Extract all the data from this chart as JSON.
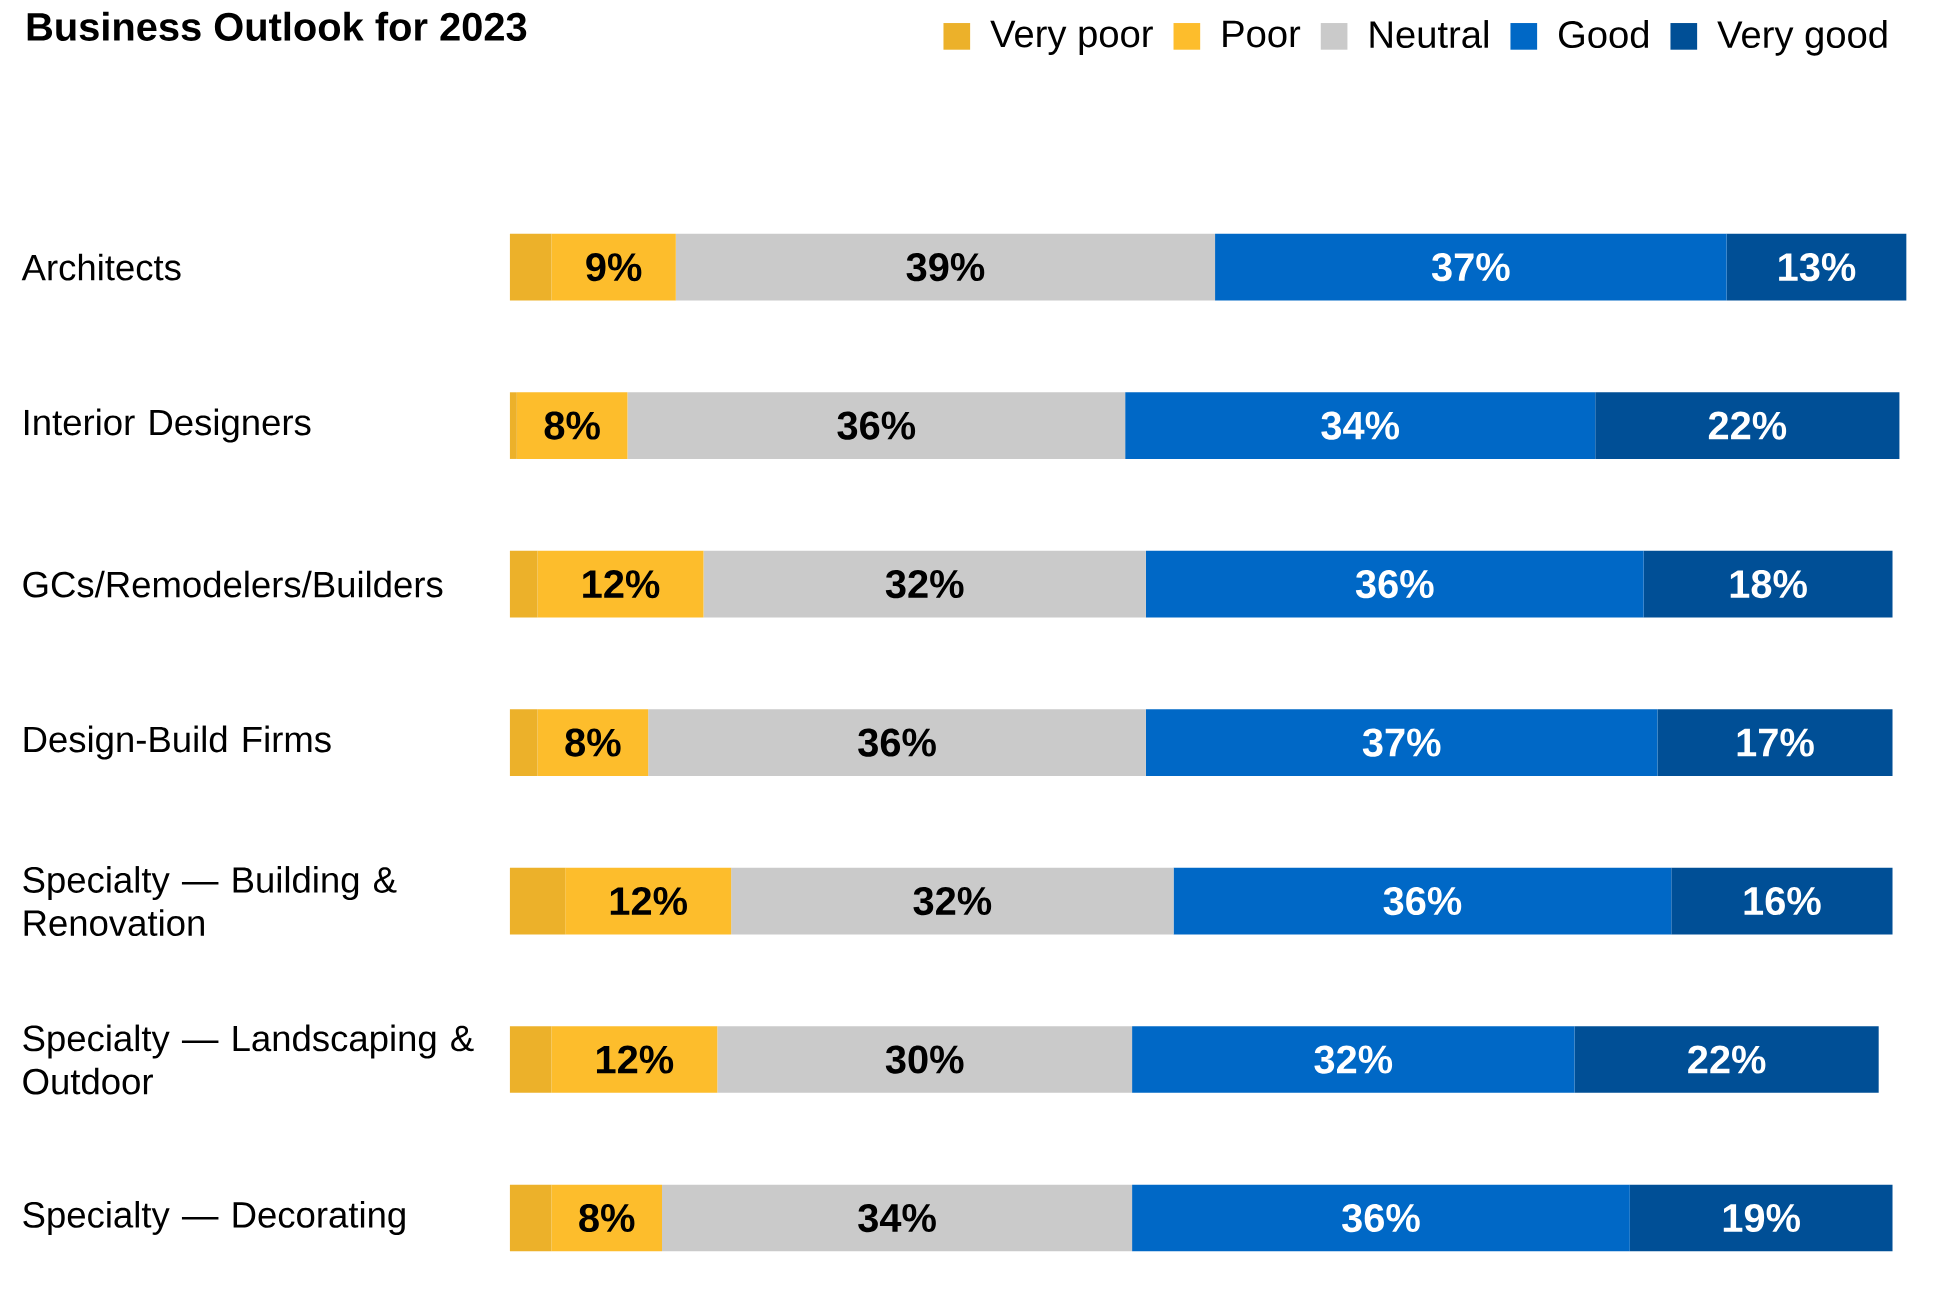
{
  "chart_data": {
    "type": "bar",
    "orientation": "horizontal",
    "stacked": true,
    "title": "Business Outlook for 2023",
    "categories": [
      "Architects",
      "Interior Designers",
      "GCs/Remodelers/Builders",
      "Design-Build Firms",
      "Specialty — Building & Renovation",
      "Specialty — Landscaping & Outdoor",
      "Specialty — Decorating"
    ],
    "series": [
      {
        "name": "Very poor",
        "color": "#ecb12a",
        "values": [
          3,
          0.5,
          2,
          2,
          4,
          3,
          3
        ],
        "value_labels": [
          null,
          null,
          null,
          null,
          null,
          null,
          null
        ]
      },
      {
        "name": "Poor",
        "color": "#fdbd2c",
        "values": [
          9,
          8,
          12,
          8,
          12,
          12,
          8
        ],
        "value_labels": [
          "9%",
          "8%",
          "12%",
          "8%",
          "12%",
          "12%",
          "8%"
        ]
      },
      {
        "name": "Neutral",
        "color": "#cacaca",
        "values": [
          39,
          36,
          32,
          36,
          32,
          30,
          34
        ],
        "value_labels": [
          "39%",
          "36%",
          "32%",
          "36%",
          "32%",
          "30%",
          "34%"
        ]
      },
      {
        "name": "Good",
        "color": "#0068c6",
        "values": [
          37,
          34,
          36,
          37,
          36,
          32,
          36
        ],
        "value_labels": [
          "37%",
          "34%",
          "36%",
          "37%",
          "36%",
          "32%",
          "36%"
        ]
      },
      {
        "name": "Very good",
        "color": "#004f96",
        "values": [
          13,
          22,
          18,
          17,
          16,
          22,
          19
        ],
        "value_labels": [
          "13%",
          "22%",
          "18%",
          "17%",
          "16%",
          "22%",
          "19%"
        ]
      }
    ],
    "xlim": [
      0,
      101
    ],
    "legend": "top right",
    "tick_labels": "y"
  }
}
